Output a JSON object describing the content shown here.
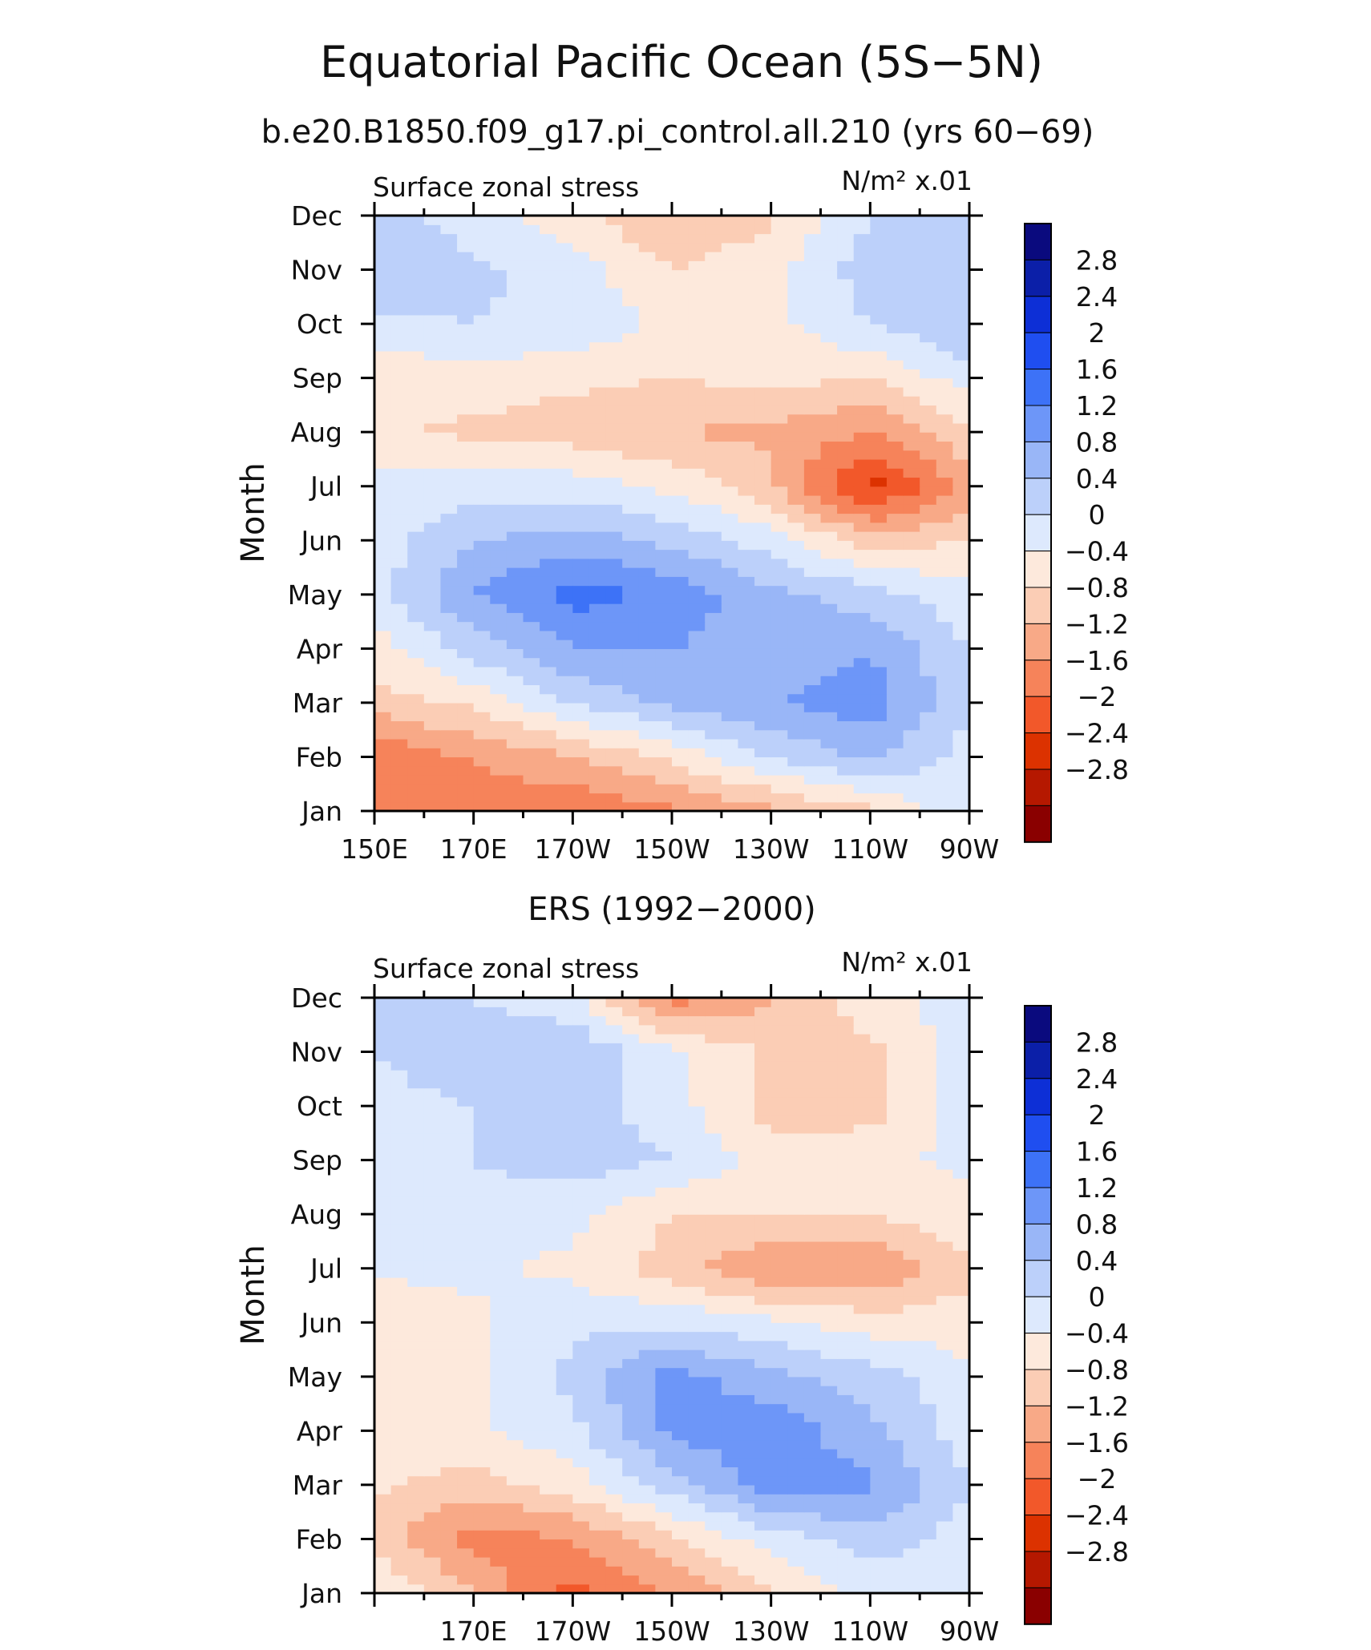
{
  "figure": {
    "title": "Equatorial Pacific Ocean (5S−5N)",
    "subtitle": "b.e20.B1850.f09_g17.pi_control.all.210 (yrs 60−69)",
    "panel2_title": "ERS (1992−2000)"
  },
  "colorbar": {
    "colors": [
      "#0a0a7e",
      "#0b1fa8",
      "#0d2fd6",
      "#1f4ef0",
      "#3d72f7",
      "#6d96f8",
      "#99b6f7",
      "#bcd0fa",
      "#dde9fd",
      "#fde9dc",
      "#fbcdb5",
      "#f8a987",
      "#f6835a",
      "#f2582a",
      "#dc3200",
      "#b51800",
      "#8a0000"
    ],
    "labels": [
      "2.8",
      "2.4",
      "2",
      "1.6",
      "1.2",
      "0.8",
      "0.4",
      "0",
      "−0.4",
      "−0.8",
      "−1.2",
      "−1.6",
      "−2",
      "−2.4",
      "−2.8"
    ]
  },
  "chart_data": [
    {
      "type": "heatmap",
      "title": "",
      "left_string": "Surface zonal stress",
      "units": "N/m² x.01",
      "ylabel": "Month",
      "xlabel": "",
      "x": [
        "150E",
        "170E",
        "170W",
        "150W",
        "130W",
        "110W",
        "90W"
      ],
      "y": [
        "Jan",
        "Feb",
        "Mar",
        "Apr",
        "May",
        "Jun",
        "Jul",
        "Aug",
        "Sep",
        "Oct",
        "Nov",
        "Dec"
      ],
      "x_ticks": [
        "150E",
        "170E",
        "170W",
        "150W",
        "130W",
        "110W",
        "90W"
      ],
      "y_ticks": [
        "Jan",
        "Feb",
        "Mar",
        "Apr",
        "May",
        "Jun",
        "Jul",
        "Aug",
        "Sep",
        "Oct",
        "Nov",
        "Dec"
      ],
      "contour_levels": [
        -2.8,
        -2.4,
        -2,
        -1.6,
        -1.2,
        -0.8,
        -0.4,
        0,
        0.4,
        0.8,
        1.2,
        1.6,
        2,
        2.4,
        2.8
      ],
      "values": [
        [
          -1.2,
          -1.4,
          -1.6,
          -1.3,
          -0.9,
          -0.5,
          0.3
        ],
        [
          -1.5,
          -1.2,
          -0.8,
          -0.3,
          0.4,
          0.9,
          0.2
        ],
        [
          -0.6,
          -0.3,
          0.4,
          0.9,
          1.2,
          1.4,
          0.5
        ],
        [
          -0.2,
          0.6,
          1.2,
          1.2,
          1.0,
          1.2,
          0.4
        ],
        [
          0.2,
          1.2,
          1.8,
          1.5,
          0.9,
          0.6,
          0.1
        ],
        [
          0.2,
          0.8,
          1.0,
          0.7,
          0.2,
          -0.6,
          -0.4
        ],
        [
          0.1,
          0.2,
          0.2,
          -0.1,
          -0.7,
          -2.2,
          -1.0
        ],
        [
          -0.3,
          -0.5,
          -0.6,
          -0.8,
          -0.9,
          -1.2,
          -0.5
        ],
        [
          -0.3,
          -0.2,
          -0.3,
          -0.4,
          -0.3,
          -0.4,
          0.2
        ],
        [
          0.3,
          0.4,
          0.3,
          -0.1,
          -0.1,
          0.4,
          0.8
        ],
        [
          0.7,
          0.5,
          0.2,
          -0.4,
          -0.1,
          0.6,
          0.8
        ],
        [
          0.6,
          0.2,
          -0.3,
          -0.8,
          -0.5,
          0.4,
          0.8
        ]
      ]
    },
    {
      "type": "heatmap",
      "title": "ERS (1992−2000)",
      "left_string": "Surface zonal stress",
      "units": "N/m² x.01",
      "ylabel": "Month",
      "xlabel": "",
      "x": [
        "150E",
        "170E",
        "170W",
        "150W",
        "130W",
        "110W",
        "90W"
      ],
      "y": [
        "Jan",
        "Feb",
        "Mar",
        "Apr",
        "May",
        "Jun",
        "Jul",
        "Aug",
        "Sep",
        "Oct",
        "Nov",
        "Dec"
      ],
      "x_ticks": [
        "170E",
        "170W",
        "150W",
        "130W",
        "110W",
        "90W"
      ],
      "y_ticks": [
        "Jan",
        "Feb",
        "Mar",
        "Apr",
        "May",
        "Jun",
        "Jul",
        "Aug",
        "Sep",
        "Oct",
        "Nov",
        "Dec"
      ],
      "contour_levels": [
        -2.8,
        -2.4,
        -2,
        -1.6,
        -1.2,
        -0.8,
        -0.4,
        0,
        0.4,
        0.8,
        1.2,
        1.6,
        2,
        2.4,
        2.8
      ],
      "values": [
        [
          0.1,
          -0.8,
          -1.8,
          -1.2,
          -0.4,
          0.1,
          0.2
        ],
        [
          -0.6,
          -1.4,
          -1.2,
          -0.5,
          0.2,
          0.6,
          0.2
        ],
        [
          -0.3,
          -0.6,
          -0.2,
          0.6,
          1.4,
          1.3,
          0.4
        ],
        [
          -0.2,
          -0.1,
          0.3,
          1.3,
          1.5,
          0.9,
          0.2
        ],
        [
          -0.2,
          -0.1,
          0.5,
          1.4,
          0.9,
          0.6,
          0.1
        ],
        [
          -0.4,
          -0.1,
          0.3,
          0.3,
          0.1,
          -0.2,
          -0.2
        ],
        [
          0.1,
          0.1,
          -0.1,
          -0.6,
          -1.2,
          -1.2,
          -0.5
        ],
        [
          0.4,
          0.3,
          0.1,
          -0.4,
          -0.4,
          -0.4,
          -0.1
        ],
        [
          0.3,
          0.4,
          0.6,
          0.4,
          -0.2,
          -0.1,
          0.1
        ],
        [
          0.3,
          0.4,
          0.6,
          0.2,
          -0.6,
          -0.6,
          0.2
        ],
        [
          0.4,
          0.6,
          0.8,
          0.1,
          -0.5,
          -0.5,
          0.2
        ],
        [
          0.6,
          0.4,
          0.1,
          -1.4,
          -0.8,
          -0.2,
          0.3
        ]
      ]
    }
  ]
}
